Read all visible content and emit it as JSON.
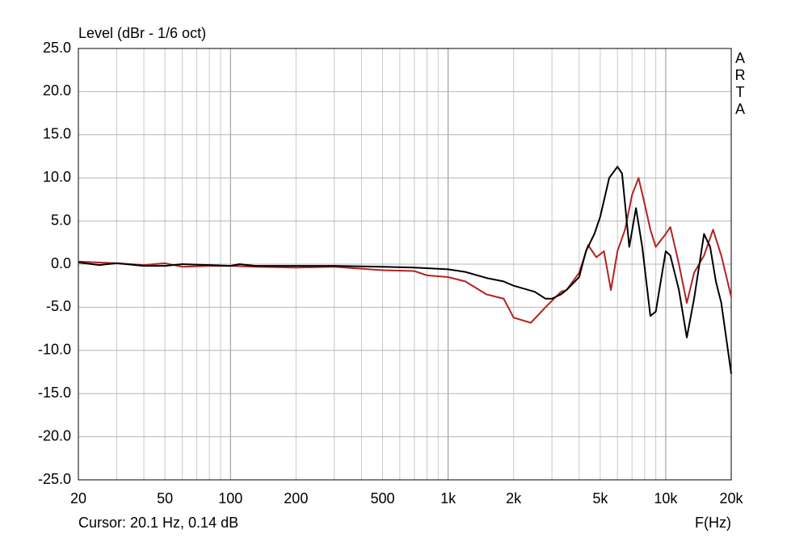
{
  "chart_data": {
    "type": "line",
    "title": "Level (dBr - 1/6 oct)",
    "side_label": "ARTA",
    "cursor": "Cursor: 20.1 Hz, 0.14 dB",
    "x_label": "F(Hz)",
    "xscale": "log",
    "grid": true,
    "xlim": [
      20,
      20000
    ],
    "ylim": [
      -25,
      25
    ],
    "xticks": [
      20,
      50,
      100,
      200,
      500,
      {
        "value": 1000,
        "label": "1k"
      },
      {
        "value": 2000,
        "label": "2k"
      },
      {
        "value": 5000,
        "label": "5k"
      },
      {
        "value": 10000,
        "label": "10k"
      },
      {
        "value": 20000,
        "label": "20k"
      }
    ],
    "xminor": [
      30,
      40,
      60,
      70,
      80,
      90,
      300,
      400,
      600,
      700,
      800,
      900,
      3000,
      4000,
      6000,
      7000,
      8000,
      9000
    ],
    "yticks": [
      {
        "value": 25,
        "label": "25.0"
      },
      {
        "value": 20,
        "label": "20.0"
      },
      {
        "value": 15,
        "label": "15.0"
      },
      {
        "value": 10,
        "label": "10.0"
      },
      {
        "value": 5,
        "label": "5.0"
      },
      {
        "value": 0,
        "label": "0.0"
      },
      {
        "value": -5,
        "label": "-5.0"
      },
      {
        "value": -10,
        "label": "-10.0"
      },
      {
        "value": -15,
        "label": "-15.0"
      },
      {
        "value": -20,
        "label": "-20.0"
      },
      {
        "value": -25,
        "label": "-25.0"
      }
    ],
    "series": [
      {
        "color": "#000000",
        "x": [
          20,
          25,
          30,
          40,
          50,
          60,
          80,
          100,
          110,
          130,
          150,
          200,
          300,
          500,
          700,
          1000,
          1200,
          1500,
          1800,
          2000,
          2500,
          2800,
          3000,
          3300,
          3500,
          4000,
          4300,
          4700,
          5000,
          5500,
          6000,
          6300,
          6800,
          7300,
          7800,
          8500,
          9000,
          10000,
          10500,
          11500,
          12500,
          13500,
          15000,
          16000,
          17000,
          18000,
          20000
        ],
        "values": [
          0.2,
          -0.1,
          0.1,
          -0.2,
          -0.2,
          0.0,
          -0.1,
          -0.2,
          0.0,
          -0.2,
          -0.2,
          -0.2,
          -0.2,
          -0.3,
          -0.4,
          -0.6,
          -0.9,
          -1.6,
          -2.0,
          -2.5,
          -3.2,
          -4.0,
          -4.0,
          -3.5,
          -3.0,
          -1.5,
          1.5,
          3.5,
          5.5,
          10.0,
          11.3,
          10.5,
          2.0,
          6.5,
          2.0,
          -6.0,
          -5.5,
          1.5,
          1.0,
          -3.0,
          -8.5,
          -4.0,
          3.5,
          2.0,
          -2.0,
          -4.5,
          -12.7
        ]
      },
      {
        "color": "#b22222",
        "x": [
          20,
          30,
          40,
          50,
          60,
          80,
          100,
          130,
          200,
          300,
          500,
          700,
          800,
          1000,
          1200,
          1500,
          1800,
          2000,
          2400,
          2800,
          3300,
          3500,
          4000,
          4400,
          4800,
          5200,
          5600,
          6000,
          6500,
          7000,
          7500,
          8000,
          8500,
          9000,
          10000,
          10500,
          11500,
          12500,
          13500,
          15000,
          16500,
          18000,
          20000
        ],
        "values": [
          0.3,
          0.1,
          -0.1,
          0.1,
          -0.3,
          -0.2,
          -0.2,
          -0.3,
          -0.4,
          -0.3,
          -0.7,
          -0.8,
          -1.3,
          -1.5,
          -2.0,
          -3.5,
          -4.0,
          -6.2,
          -6.8,
          -5.0,
          -3.2,
          -3.0,
          -1.0,
          2.2,
          0.8,
          1.5,
          -3.0,
          1.5,
          4.0,
          8.0,
          10.0,
          7.0,
          4.0,
          2.0,
          3.5,
          4.3,
          0.0,
          -4.5,
          -1.0,
          1.0,
          4.0,
          1.0,
          -3.8
        ]
      }
    ]
  }
}
